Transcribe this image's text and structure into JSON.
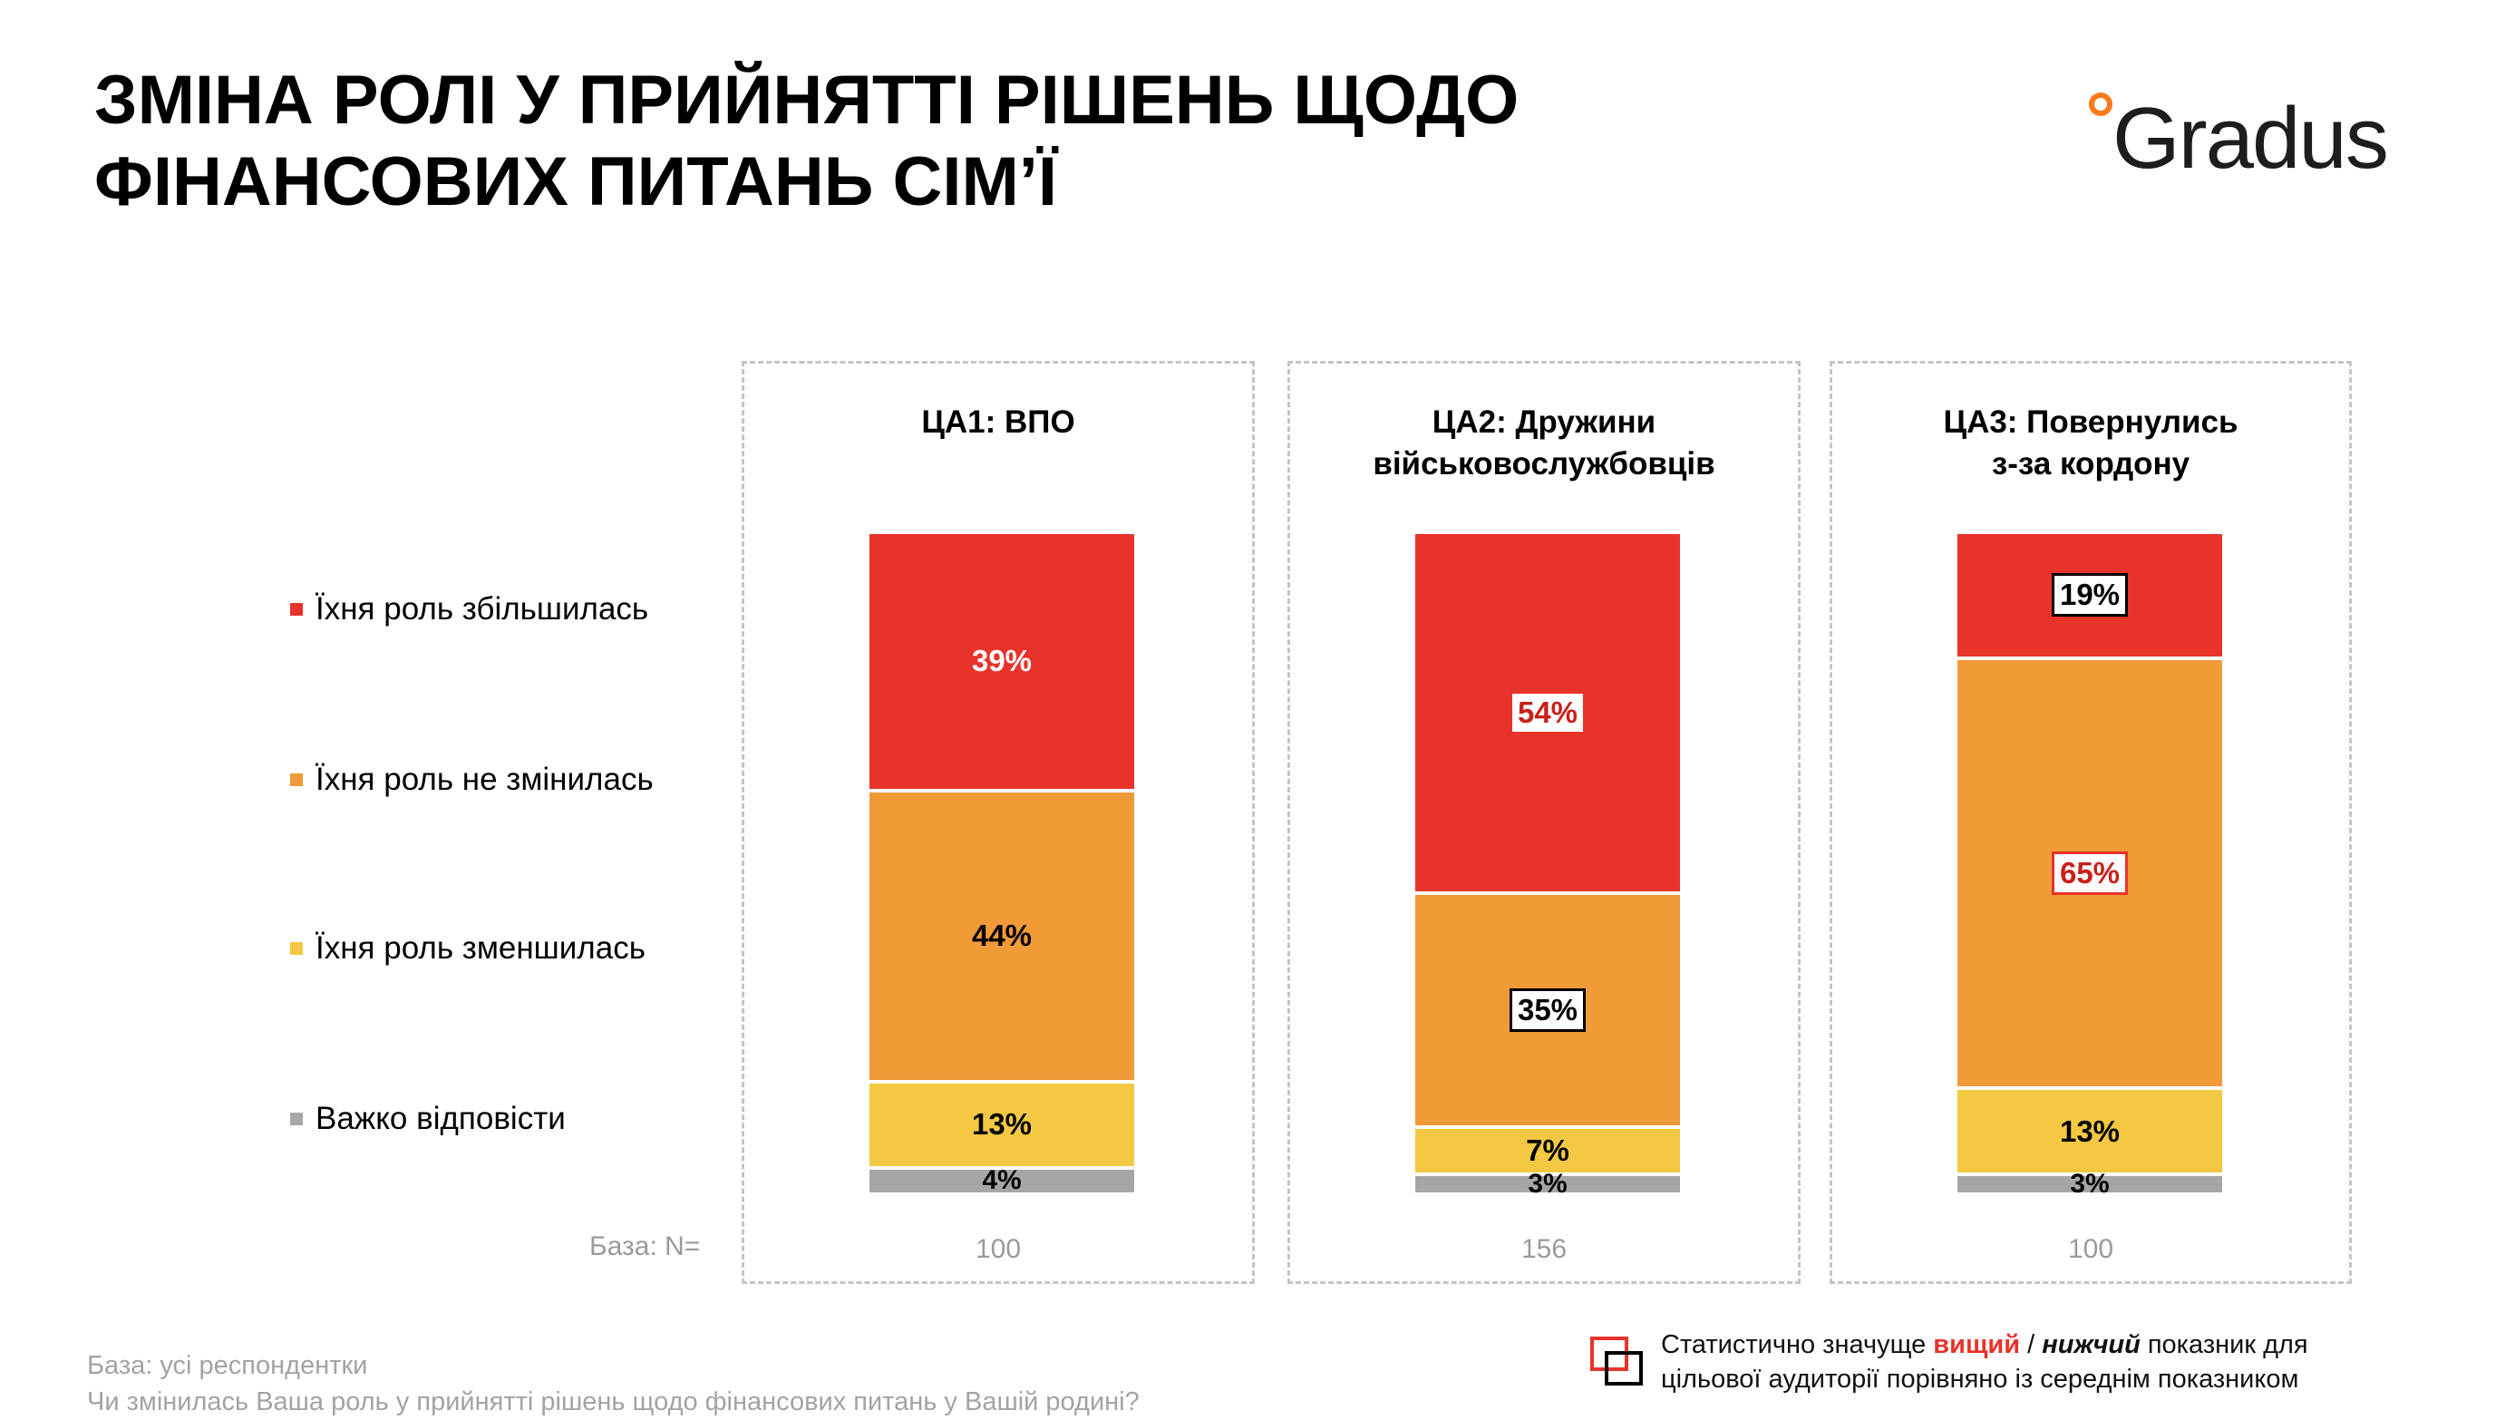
{
  "title": {
    "line1": "ЗМІНА РОЛІ У ПРИЙНЯТТІ РІШЕНЬ ЩОДО",
    "line2": "ФІНАНСОВИХ ПИТАНЬ СІМ’Ї"
  },
  "logo": {
    "text": "Gradus",
    "accent_color": "#ff7a1a"
  },
  "legend": [
    {
      "label": "Їхня роль збільшилась",
      "color": "#e8332a"
    },
    {
      "label": "Їхня роль не змінилась",
      "color": "#f09a38"
    },
    {
      "label": "Їхня роль зменшилась",
      "color": "#f4c842"
    },
    {
      "label": "Важко відповісти",
      "color": "#a6a6a6"
    }
  ],
  "base_label": "База: N=",
  "chart_data": {
    "type": "bar",
    "stacked": true,
    "normalized": true,
    "categories": [
      "ЦА1: ВПО",
      "ЦА2: Дружини військовослужбовців",
      "ЦА3: Повернулись з-за кордону"
    ],
    "base_n": [
      "100",
      "156",
      "100"
    ],
    "series": [
      {
        "name": "Їхня роль збільшилась",
        "color": "#e8332a",
        "values": [
          39,
          54,
          19
        ],
        "labels": [
          "39%",
          "54%",
          "19%"
        ],
        "significance": [
          "none",
          "higher",
          "lower"
        ]
      },
      {
        "name": "Їхня роль не змінилась",
        "color": "#f09a38",
        "values": [
          44,
          35,
          65
        ],
        "labels": [
          "44%",
          "35%",
          "65%"
        ],
        "significance": [
          "none",
          "lower",
          "higher"
        ]
      },
      {
        "name": "Їхня роль зменшилась",
        "color": "#f4c842",
        "values": [
          13,
          7,
          13
        ],
        "labels": [
          "13%",
          "7%",
          "13%"
        ],
        "significance": [
          "none",
          "none",
          "none"
        ]
      },
      {
        "name": "Важко відповісти",
        "color": "#a6a6a6",
        "values": [
          4,
          3,
          3
        ],
        "labels": [
          "4%",
          "3%",
          "3%"
        ],
        "significance": [
          "none",
          "none",
          "none"
        ]
      }
    ]
  },
  "panels": [
    {
      "title_line1": "ЦА1: ВПО",
      "title_line2": ""
    },
    {
      "title_line1": "ЦА2: Дружини",
      "title_line2": "військовослужбовців"
    },
    {
      "title_line1": "ЦА3: Повернулись",
      "title_line2": "з-за кордону"
    }
  ],
  "footnote": {
    "line1": "База: усі респондентки",
    "line2": "Чи змінилась Ваша роль у прийнятті рішень щодо фінансових питань у Вашій родині?"
  },
  "significance_note": {
    "prefix": "Статистично значуще ",
    "higher": "вищий",
    "separator": " / ",
    "lower": "нижчий",
    "suffix": " показник для",
    "line2": "цільової аудиторії порівняно із середнім показником"
  }
}
